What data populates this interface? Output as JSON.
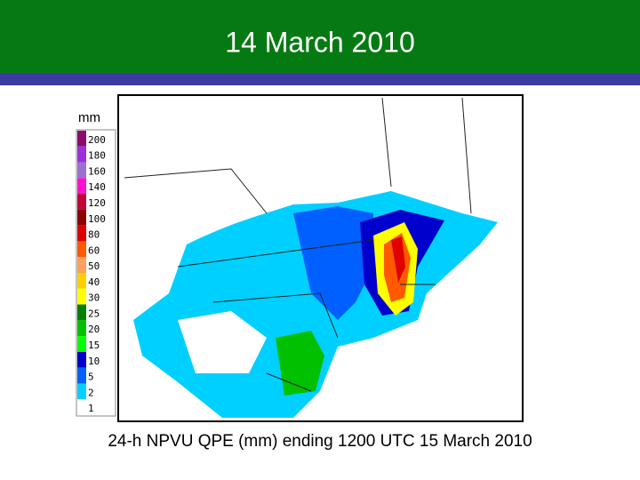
{
  "header": {
    "title": "14 March 2010"
  },
  "legend": {
    "unit": "mm",
    "items": [
      {
        "label": "200",
        "color": "#8c0a6e"
      },
      {
        "label": "180",
        "color": "#9b30e0"
      },
      {
        "label": "160",
        "color": "#9a70d0"
      },
      {
        "label": "140",
        "color": "#ff10d0"
      },
      {
        "label": "120",
        "color": "#c0003a"
      },
      {
        "label": "100",
        "color": "#8b0000"
      },
      {
        "label": "80",
        "color": "#e00000"
      },
      {
        "label": "60",
        "color": "#ff5a00"
      },
      {
        "label": "50",
        "color": "#ffa060"
      },
      {
        "label": "40",
        "color": "#ffd000"
      },
      {
        "label": "30",
        "color": "#ffff00"
      },
      {
        "label": "25",
        "color": "#008000"
      },
      {
        "label": "20",
        "color": "#00c000"
      },
      {
        "label": "15",
        "color": "#00ff00"
      },
      {
        "label": "10",
        "color": "#0000cc"
      },
      {
        "label": "5",
        "color": "#0060ff"
      },
      {
        "label": "2",
        "color": "#00d0ff"
      },
      {
        "label": "1",
        "color": "#ffffff"
      }
    ]
  },
  "caption": "24-h NPVU QPE (mm) ending 1200 UTC 15 March 2010"
}
